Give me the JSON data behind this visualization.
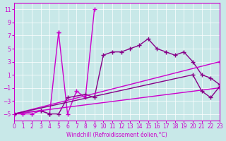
{
  "xlabel": "Windchill (Refroidissement éolien,°C)",
  "ylabel": "",
  "bg_color": "#c8e8e8",
  "line_color": "#cc00cc",
  "line_color2": "#880088",
  "xlim": [
    0,
    23
  ],
  "ylim": [
    -6,
    12
  ],
  "xticks": [
    0,
    1,
    2,
    3,
    4,
    5,
    6,
    7,
    8,
    9,
    10,
    11,
    12,
    13,
    14,
    15,
    16,
    17,
    18,
    19,
    20,
    21,
    22,
    23
  ],
  "yticks": [
    -5,
    -3,
    -1,
    1,
    3,
    5,
    7,
    9,
    11
  ],
  "line1_x": [
    0,
    1,
    2,
    3,
    4,
    5,
    5,
    6,
    7,
    8,
    9
  ],
  "line1_y": [
    -5,
    -5,
    -5,
    -4.5,
    -5,
    7.5,
    7.5,
    -5,
    -1.5,
    -2.5,
    11
  ],
  "line2_x": [
    0,
    3,
    4,
    5,
    6,
    8,
    9,
    10,
    11,
    12,
    13,
    14,
    15,
    16,
    17,
    18,
    19,
    20,
    21,
    22,
    23
  ],
  "line2_y": [
    -5,
    -4.5,
    -5,
    -5,
    -2.5,
    -2,
    -2.5,
    4,
    4.5,
    4.5,
    5,
    5.5,
    6.5,
    5,
    4.5,
    4,
    4.5,
    3,
    1,
    0.5,
    -0.5
  ],
  "line3_x": [
    0,
    23
  ],
  "line3_y": [
    -5,
    3
  ],
  "line4_x": [
    0,
    23
  ],
  "line4_y": [
    -5,
    -1
  ],
  "line5_x": [
    0,
    20,
    21,
    22,
    23
  ],
  "line5_y": [
    -5,
    1,
    -1.5,
    -2.5,
    -0.8
  ]
}
